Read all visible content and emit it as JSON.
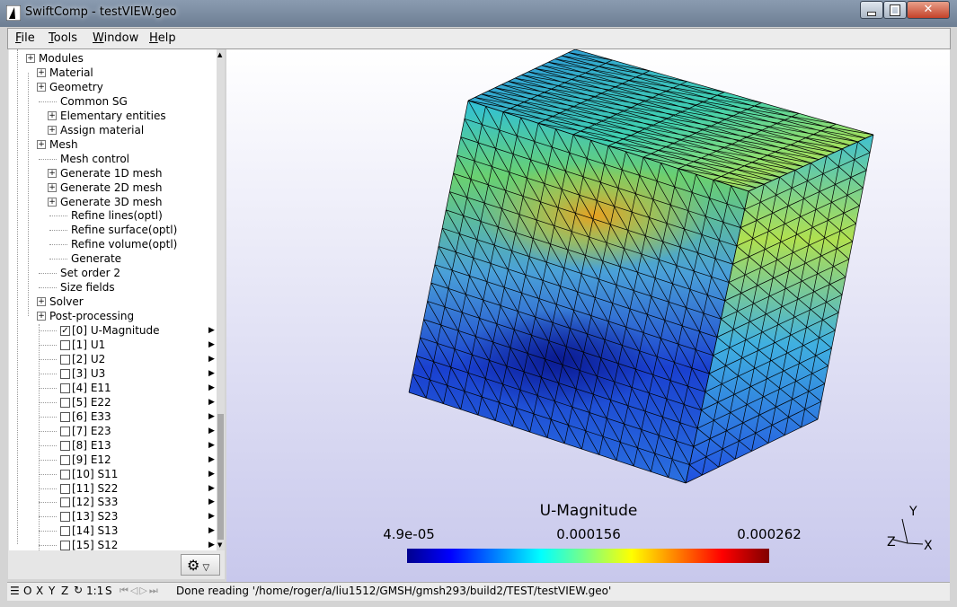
{
  "window": {
    "title": "SwiftComp - testVIEW.geo"
  },
  "menu": [
    "File",
    "Tools",
    "Window",
    "Help"
  ],
  "tree": [
    "Modules",
    "Material",
    "Geometry",
    "Common SG",
    "Elementary entities",
    "Assign material",
    "Mesh",
    "Mesh control",
    "Generate 1D mesh",
    "Generate 2D mesh",
    "Generate 3D mesh",
    "Refine lines(optl)",
    "Refine surface(optl)",
    "Refine volume(optl)",
    "Generate",
    "Set order 2",
    "Size fields",
    "Solver",
    "Post-processing"
  ],
  "views": [
    {
      "label": "[0] U-Magnitude",
      "checked": true
    },
    {
      "label": "[1] U1",
      "checked": false
    },
    {
      "label": "[2] U2",
      "checked": false
    },
    {
      "label": "[3] U3",
      "checked": false
    },
    {
      "label": "[4] E11",
      "checked": false
    },
    {
      "label": "[5] E22",
      "checked": false
    },
    {
      "label": "[6] E33",
      "checked": false
    },
    {
      "label": "[7] E23",
      "checked": false
    },
    {
      "label": "[8] E13",
      "checked": false
    },
    {
      "label": "[9] E12",
      "checked": false
    },
    {
      "label": "[10] S11",
      "checked": false
    },
    {
      "label": "[11] S22",
      "checked": false
    },
    {
      "label": "[12] S33",
      "checked": false
    },
    {
      "label": "[13] S23",
      "checked": false
    },
    {
      "label": "[14] S13",
      "checked": false
    },
    {
      "label": "[15] S12",
      "checked": false
    }
  ],
  "viewport": {
    "colorbar": {
      "title": "U-Magnitude",
      "labels": [
        "4.9e-05",
        "0.000156",
        "0.000262"
      ]
    },
    "axes": [
      "Y",
      "Z",
      "X"
    ]
  },
  "status": {
    "buttons": [
      "O",
      "X",
      "Y",
      "Z",
      "1:1",
      "S"
    ],
    "message": "Done reading '/home/roger/a/liu1512/GMSH/gmsh293/build2/TEST/testVIEW.geo'"
  }
}
